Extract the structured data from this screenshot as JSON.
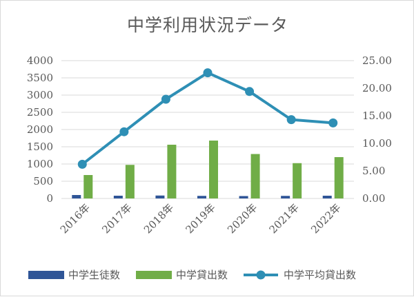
{
  "chart_data": {
    "type": "bar+line",
    "title": "中学利用状況データ",
    "categories": [
      "2016年",
      "2017年",
      "2018年",
      "2019年",
      "2020年",
      "2021年",
      "2022年"
    ],
    "series": [
      {
        "name": "中学生徒数",
        "type": "bar",
        "axis": "left",
        "color": "#2f5597",
        "values": [
          100,
          80,
          85,
          75,
          70,
          75,
          80
        ]
      },
      {
        "name": "中学貸出数",
        "type": "bar",
        "axis": "left",
        "color": "#70ad47",
        "values": [
          680,
          975,
          1560,
          1680,
          1290,
          1025,
          1200
        ]
      },
      {
        "name": "中学平均貸出数",
        "type": "line",
        "axis": "right",
        "color": "#2e8fb5",
        "values": [
          6.2,
          12.1,
          18.0,
          22.8,
          19.4,
          14.3,
          13.7
        ]
      }
    ],
    "y_left": {
      "min": 0,
      "max": 4000,
      "step": 500,
      "ticks": [
        "0",
        "500",
        "1000",
        "1500",
        "2000",
        "2500",
        "3000",
        "3500",
        "4000"
      ]
    },
    "y_right": {
      "min": 0,
      "max": 25,
      "step": 5,
      "ticks": [
        "0.00",
        "5.00",
        "10.00",
        "15.00",
        "20.00",
        "25.00"
      ]
    },
    "grid": true,
    "legend_position": "bottom"
  }
}
